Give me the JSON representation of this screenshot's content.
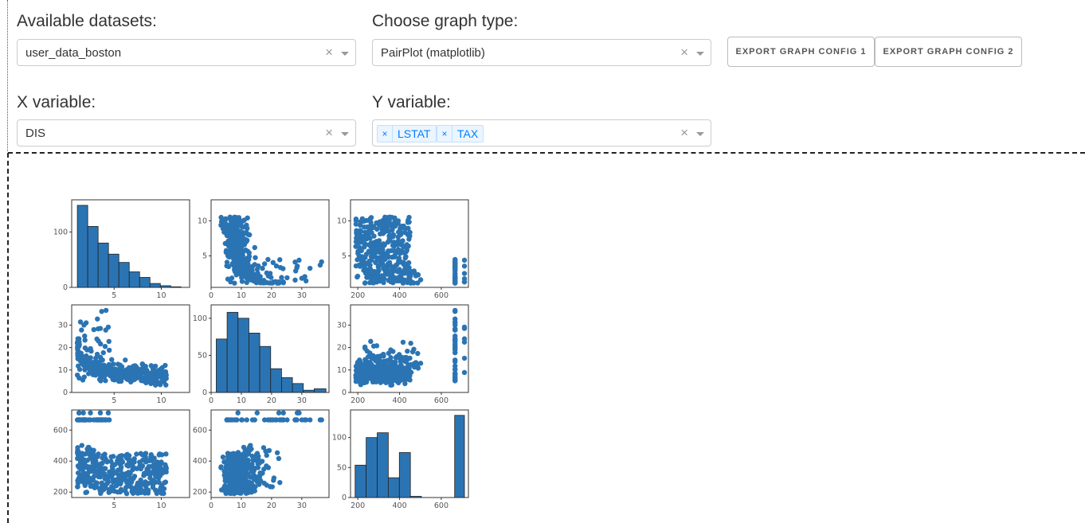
{
  "controls": {
    "datasets_label": "Available datasets:",
    "dataset_value": "user_data_boston",
    "graph_type_label": "Choose graph type:",
    "graph_type_value": "PairPlot (matplotlib)",
    "export1_label": "EXPORT GRAPH CONFIG 1",
    "export2_label": "EXPORT GRAPH CONFIG 2",
    "x_label": "X variable:",
    "x_value": "DIS",
    "y_label": "Y variable:",
    "y_values": [
      "LSTAT",
      "TAX"
    ],
    "clear_glyph": "×",
    "tag_remove_glyph": "×"
  },
  "chart_data": {
    "type": "pairplot",
    "variables": [
      "DIS",
      "LSTAT",
      "TAX"
    ],
    "color": "#2b74b3",
    "ranges": {
      "DIS": [
        0.5,
        13
      ],
      "LSTAT": [
        0,
        39
      ],
      "TAX": [
        165,
        730
      ]
    },
    "ticks": {
      "DIS": [
        5,
        10
      ],
      "LSTAT": [
        0,
        10,
        20,
        30
      ],
      "TAX": [
        200,
        400,
        600
      ]
    },
    "hist_ticks": {
      "DIS": [
        0,
        100
      ],
      "LSTAT": [
        0,
        50,
        100
      ],
      "TAX": [
        0,
        50,
        100
      ]
    },
    "histograms": {
      "DIS": {
        "bins": [
          1.1,
          2.2,
          3.3,
          4.4,
          5.5,
          6.6,
          7.7,
          8.8,
          9.9,
          11.0,
          12.1
        ],
        "counts": [
          148,
          110,
          80,
          60,
          45,
          28,
          18,
          7,
          3,
          1
        ],
        "ymax": 158
      },
      "LSTAT": {
        "bins": [
          1.7,
          5.3,
          8.9,
          12.5,
          16.1,
          19.7,
          23.3,
          26.9,
          30.5,
          34.1,
          38.0
        ],
        "counts": [
          72,
          108,
          100,
          80,
          62,
          32,
          20,
          12,
          3,
          5
        ],
        "ymax": 118
      },
      "TAX": {
        "bins": [
          187,
          240,
          293,
          346,
          399,
          452,
          505,
          558,
          611,
          664,
          711
        ],
        "counts": [
          54,
          100,
          108,
          33,
          75,
          2,
          0,
          0,
          0,
          137
        ],
        "ymax": 146
      }
    }
  }
}
